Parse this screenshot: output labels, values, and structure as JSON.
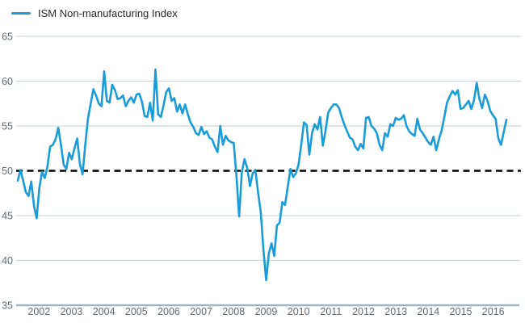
{
  "legend": {
    "label": "ISM Non-manufacturing Index"
  },
  "colors": {
    "line": "#199cd8",
    "grid": "#cfd6db",
    "axis_line": "#a0b4c1",
    "reference_line": "#000000",
    "tick_text": "#5f6b75",
    "legend_text": "#26292c",
    "background": "#ffffff"
  },
  "chart_data": {
    "type": "line",
    "title": "",
    "series": [
      {
        "name": "ISM Non-manufacturing Index",
        "frequency": "monthly",
        "x_start": "2001-05",
        "x_end": "2016-06",
        "values": [
          48.9,
          50.1,
          48.9,
          47.6,
          47.2,
          48.8,
          46.1,
          44.7,
          48.1,
          49.9,
          49.2,
          50.5,
          52.7,
          52.9,
          53.5,
          54.8,
          52.9,
          50.7,
          50.2,
          52.0,
          51.3,
          52.5,
          53.6,
          50.8,
          49.6,
          52.9,
          55.8,
          57.5,
          59.1,
          58.4,
          57.5,
          57.2,
          61.1,
          57.8,
          57.6,
          59.6,
          59.0,
          58.0,
          58.1,
          58.4,
          57.2,
          57.8,
          58.2,
          57.6,
          58.5,
          58.6,
          57.7,
          56.1,
          56.0,
          57.6,
          55.6,
          61.3,
          56.3,
          56.0,
          57.3,
          58.8,
          59.2,
          57.8,
          58.1,
          56.6,
          57.4,
          56.4,
          57.4,
          56.3,
          55.4,
          54.9,
          54.2,
          54.0,
          54.9,
          54.1,
          54.4,
          53.7,
          53.5,
          52.7,
          52.1,
          55.0,
          52.9,
          53.9,
          53.4,
          53.2,
          53.1,
          49.4,
          44.9,
          49.9,
          51.3,
          50.3,
          48.3,
          49.7,
          50.1,
          47.6,
          45.4,
          41.2,
          37.8,
          40.8,
          41.9,
          40.5,
          43.9,
          44.2,
          46.5,
          46.2,
          48.2,
          50.2,
          49.3,
          49.7,
          50.7,
          52.9,
          55.4,
          55.1,
          51.8,
          54.2,
          55.2,
          54.6,
          56.0,
          52.8,
          54.5,
          56.5,
          57.0,
          57.4,
          57.4,
          57.0,
          56.0,
          55.1,
          54.4,
          53.7,
          53.5,
          52.7,
          52.3,
          53.0,
          52.5,
          55.9,
          56.0,
          55.0,
          54.7,
          54.2,
          52.9,
          52.3,
          54.2,
          53.8,
          55.2,
          55.0,
          55.9,
          55.7,
          55.8,
          56.2,
          55.0,
          54.4,
          54.1,
          53.9,
          55.8,
          54.6,
          54.2,
          53.7,
          53.2,
          52.9,
          53.8,
          52.3,
          53.5,
          54.5,
          56.0,
          57.6,
          58.3,
          58.9,
          58.5,
          59.0,
          56.9,
          57.0,
          57.4,
          57.8,
          56.9,
          57.9,
          59.8,
          58.0,
          57.0,
          58.5,
          57.8,
          56.7,
          56.2,
          55.8,
          53.6,
          52.9,
          54.3,
          55.7
        ]
      }
    ],
    "y_ticks": [
      65,
      60,
      55,
      50,
      45,
      40,
      35
    ],
    "ylim": [
      35,
      65
    ],
    "reference_line_value": 50,
    "x_tick_labels": [
      "2002",
      "2003",
      "2004",
      "2005",
      "2006",
      "2007",
      "2008",
      "2009",
      "2010",
      "2011",
      "2012",
      "2013",
      "2014",
      "2015",
      "2016"
    ],
    "grid": "horizontal",
    "legend_position": "top-left"
  }
}
